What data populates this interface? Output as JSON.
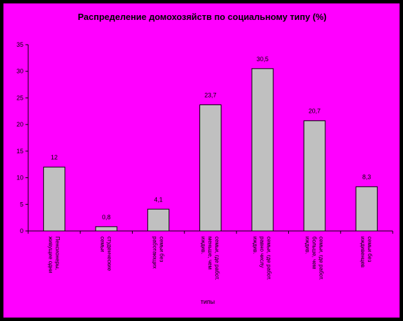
{
  "chart_data": {
    "type": "bar",
    "title": "Распределение домохозяйств по социальному типу (%)",
    "xlabel": "типы",
    "ylabel": "",
    "ylim": [
      0,
      35
    ],
    "yticks": [
      0,
      5,
      10,
      15,
      20,
      25,
      30,
      35
    ],
    "grid": false,
    "legend": "none",
    "categories": [
      "Пенсионеры, живущие одни",
      "студенческие семьи",
      "семьи без работающих",
      "семьи, где работающих меньше, чем иждивенцев",
      "семьи, где работающих равное число иждивенцев",
      "семьи, где работающих больше, чем иждивенцев",
      "семьи без иждивенцев"
    ],
    "category_lines": [
      [
        "Пенсионеры,",
        "живущие одни"
      ],
      [
        "студенческие",
        "семьи"
      ],
      [
        "семьи без",
        "работающих"
      ],
      [
        "семьи, где работ.",
        "меньше, чем",
        "иждив."
      ],
      [
        "семьи, где работ.",
        "равно числу",
        "иждив."
      ],
      [
        "семьи, где работ.",
        "больше, чем",
        "иждив."
      ],
      [
        "семьи без",
        "иждивенцев"
      ]
    ],
    "values": [
      12,
      0.8,
      4.1,
      23.7,
      30.5,
      20.7,
      8.3
    ],
    "value_labels": [
      "12",
      "0,8",
      "4,1",
      "23,7",
      "30,5",
      "20,7",
      "8,3"
    ],
    "colors": {
      "background": "#ff00ff",
      "bar_fill": "#c0c0c0",
      "bar_stroke": "#000000"
    }
  }
}
